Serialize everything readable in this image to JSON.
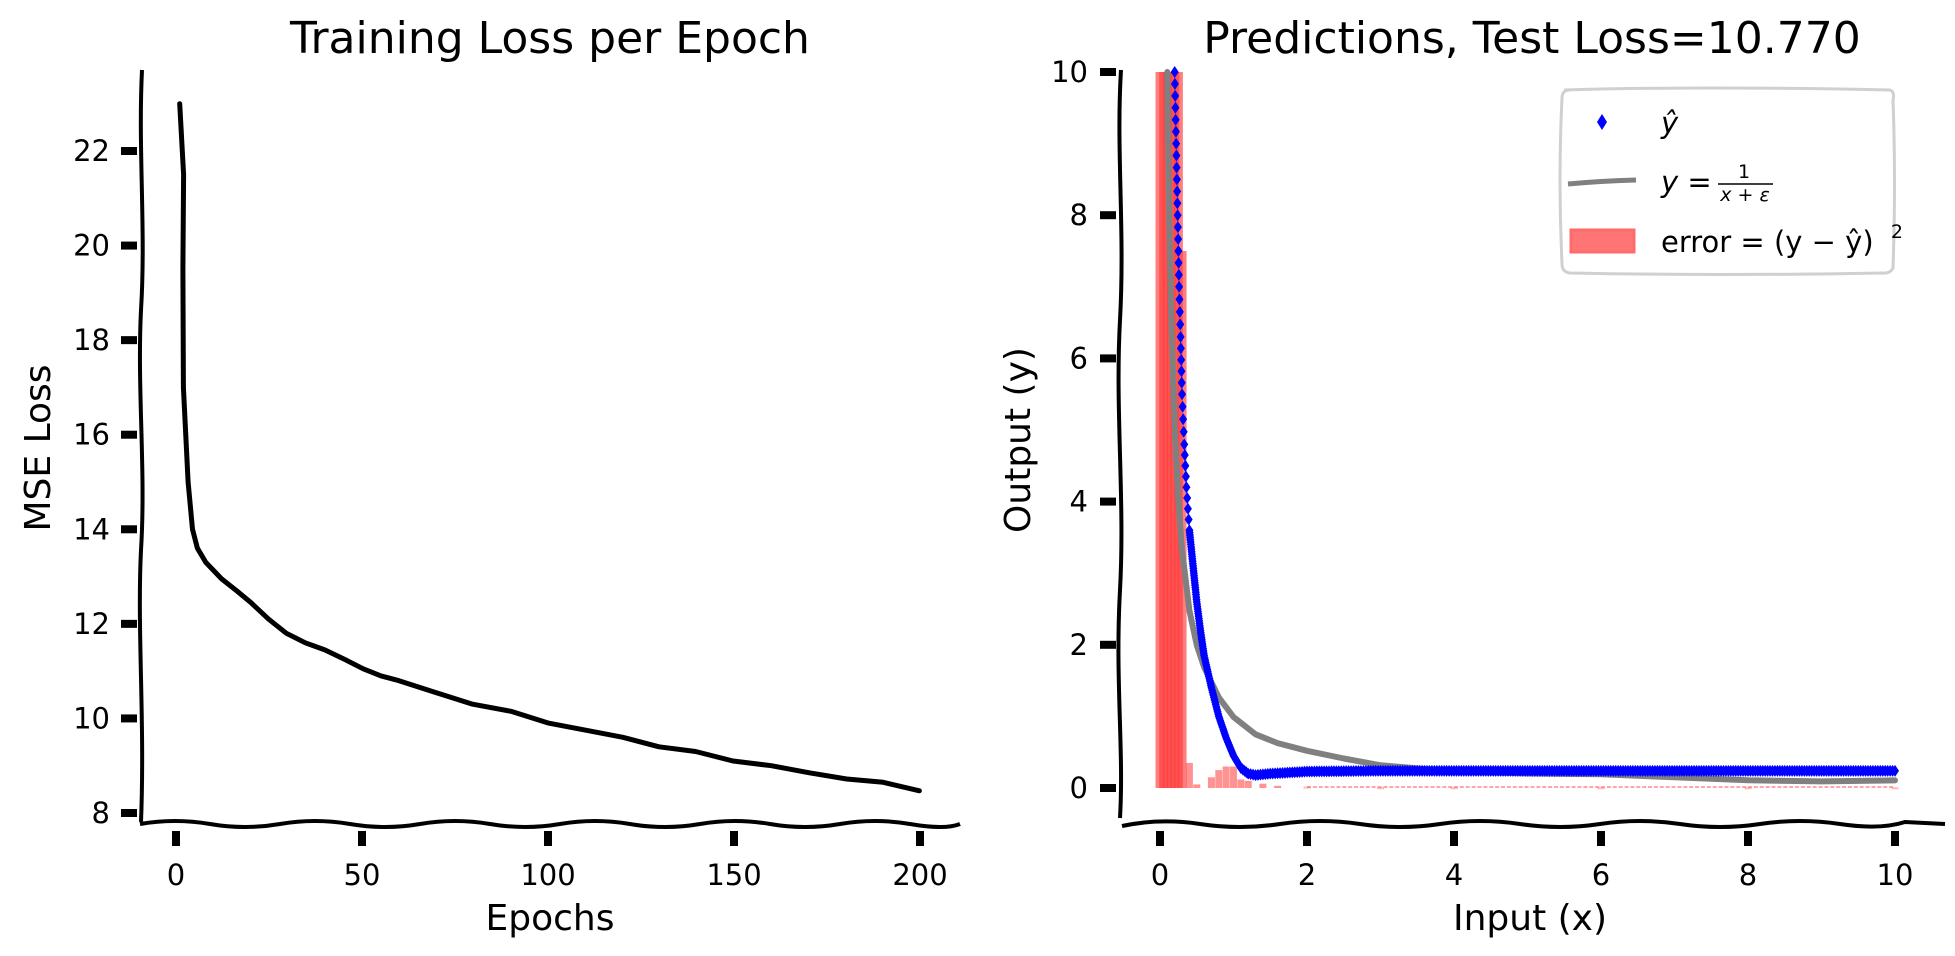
{
  "chart_data": [
    {
      "type": "line",
      "title": "Training Loss per Epoch",
      "xlabel": "Epochs",
      "ylabel": "MSE Loss",
      "xlim": [
        -10,
        210
      ],
      "ylim": [
        7.8,
        23.6
      ],
      "xticks": [
        0,
        50,
        100,
        150,
        200
      ],
      "yticks": [
        8,
        10,
        12,
        14,
        16,
        18,
        20,
        22
      ],
      "grid": false,
      "style": "xkcd",
      "series": [
        {
          "name": "training loss",
          "color": "#000000",
          "x": [
            1,
            1.5,
            2,
            2.5,
            3,
            4,
            6,
            8,
            12,
            16,
            20,
            25,
            30,
            35,
            40,
            45,
            50,
            55,
            60,
            70,
            80,
            90,
            100,
            110,
            120,
            130,
            140,
            150,
            160,
            170,
            180,
            190,
            200
          ],
          "y": [
            23.0,
            21.5,
            19.5,
            17.0,
            15.0,
            14.0,
            13.6,
            13.3,
            12.95,
            12.7,
            12.45,
            12.1,
            11.8,
            11.6,
            11.45,
            11.25,
            11.05,
            10.9,
            10.8,
            10.55,
            10.3,
            10.15,
            9.9,
            9.75,
            9.6,
            9.4,
            9.3,
            9.1,
            9.0,
            8.85,
            8.72,
            8.65,
            8.47
          ]
        }
      ]
    },
    {
      "type": "scatter",
      "title": "Predictions, Test Loss=10.770",
      "xlabel": "Input (x)",
      "ylabel": "Output (y)",
      "xlim": [
        -0.55,
        10.55
      ],
      "ylim": [
        -0.5,
        10.05
      ],
      "xticks": [
        0,
        2,
        4,
        6,
        8,
        10
      ],
      "yticks": [
        0,
        2,
        4,
        6,
        8,
        10
      ],
      "grid": false,
      "style": "xkcd",
      "legend_position": "upper right",
      "series": [
        {
          "name": "y_hat",
          "legend_label": "ŷ",
          "type": "scatter",
          "marker": "diamond",
          "color": "#0000ff",
          "x": [
            0.2,
            0.21,
            0.22,
            0.23,
            0.24,
            0.25,
            0.26,
            0.28,
            0.3,
            0.33,
            0.36,
            0.4,
            0.45,
            0.5,
            0.55,
            0.6,
            0.7,
            0.8,
            0.9,
            1.0,
            1.1,
            1.2,
            1.3,
            1.5,
            2.0,
            3.0,
            4.0,
            5.0,
            6.0,
            7.0,
            8.0,
            9.0,
            10.0
          ],
          "y": [
            10.0,
            9.5,
            9.0,
            8.5,
            8.0,
            7.5,
            7.0,
            6.3,
            5.5,
            4.8,
            4.2,
            3.6,
            3.1,
            2.6,
            2.2,
            1.85,
            1.4,
            1.0,
            0.7,
            0.45,
            0.28,
            0.2,
            0.18,
            0.2,
            0.23,
            0.24,
            0.24,
            0.24,
            0.24,
            0.24,
            0.24,
            0.24,
            0.24
          ]
        },
        {
          "name": "true function",
          "legend_label": "y = 1/(x+ε)",
          "type": "line",
          "color": "#808080",
          "x": [
            0.1,
            0.12,
            0.15,
            0.2,
            0.25,
            0.3,
            0.4,
            0.5,
            0.6,
            0.8,
            1.0,
            1.3,
            1.6,
            2.0,
            2.5,
            3.0,
            4.0,
            5.0,
            6.0,
            7.0,
            8.0,
            9.0,
            10.0
          ],
          "y": [
            10.0,
            8.3,
            6.7,
            5.0,
            4.0,
            3.33,
            2.5,
            2.0,
            1.67,
            1.25,
            1.0,
            0.77,
            0.63,
            0.5,
            0.4,
            0.33,
            0.25,
            0.2,
            0.17,
            0.14,
            0.125,
            0.11,
            0.1
          ]
        },
        {
          "name": "error",
          "legend_label": "error = (y − ŷ)²",
          "type": "bar",
          "color": "#ff0000",
          "alpha": 0.6,
          "x": [
            0.0,
            0.05,
            0.1,
            0.15,
            0.2,
            0.25,
            0.3,
            0.4,
            0.5,
            0.7,
            0.8,
            0.9,
            1.0,
            1.1,
            1.2,
            1.4,
            1.6,
            2.0,
            3.0,
            4.0,
            6.0,
            8.0,
            10.0
          ],
          "y": [
            10.0,
            10.0,
            10.0,
            10.0,
            10.0,
            10.0,
            7.5,
            0.35,
            0.05,
            0.15,
            0.25,
            0.3,
            0.3,
            0.12,
            0.1,
            0.06,
            0.03,
            0.02,
            0.01,
            0.01,
            0.01,
            0.01,
            0.01
          ]
        }
      ]
    }
  ],
  "figure": {
    "left": {
      "title": "Training Loss per Epoch",
      "xlabel": "Epochs",
      "ylabel": "MSE Loss",
      "xtick_labels": [
        "0",
        "50",
        "100",
        "150",
        "200"
      ],
      "ytick_labels": [
        "8",
        "10",
        "12",
        "14",
        "16",
        "18",
        "20",
        "22"
      ]
    },
    "right": {
      "title": "Predictions, Test Loss=10.770",
      "xlabel": "Input (x)",
      "ylabel": "Output (y)",
      "xtick_labels": [
        "0",
        "2",
        "4",
        "6",
        "8",
        "10"
      ],
      "ytick_labels": [
        "0",
        "2",
        "4",
        "6",
        "8",
        "10"
      ],
      "legend": {
        "yhat_label": "ŷ",
        "true_label_lhs": "y =",
        "true_label_num": "1",
        "true_label_den": "x + ε",
        "error_label": "error = (y − ŷ)",
        "error_exp": "2"
      }
    }
  },
  "colors": {
    "prediction": "#0000ff",
    "truth": "#808080",
    "error": "#ff3b3b",
    "axis": "#000000",
    "legend_border": "#d0d0d0"
  }
}
